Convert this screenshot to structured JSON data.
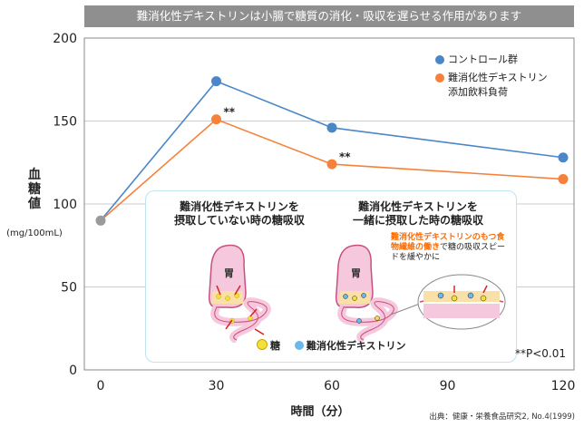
{
  "banner": "難消化性デキストリンは小腸で糖質の消化・吸収を遅らせる作用があります",
  "chart_data": {
    "type": "line",
    "x": [
      0,
      30,
      60,
      120
    ],
    "xticks": [
      "0",
      "30",
      "60",
      "90",
      "120"
    ],
    "yticks": [
      "0",
      "50",
      "100",
      "150",
      "200"
    ],
    "xlim": [
      0,
      120
    ],
    "ylim": [
      0,
      200
    ],
    "xlabel": "時間（分）",
    "ylabel_chars": [
      "血",
      "糖",
      "値"
    ],
    "ylabel_unit": "(mg/100mL)",
    "grid": "horizontal",
    "legend_position": "top-right",
    "series": [
      {
        "name": "コントロール群",
        "color": "#4a86c8",
        "values": [
          90,
          174,
          146,
          128
        ]
      },
      {
        "name": "難消化性デキストリン添加飲料負荷",
        "legend_lines": [
          "難消化性デキストリン",
          "添加飲料負荷"
        ],
        "color": "#f5813a",
        "values": [
          90,
          151,
          124,
          115
        ]
      }
    ],
    "start_point_color": "#9a9a9a",
    "annotations": [
      {
        "text": "**",
        "x": 30,
        "y": 151
      },
      {
        "text": "**",
        "x": 60,
        "y": 124
      }
    ]
  },
  "inset": {
    "left_title": "難消化性デキストリンを\n摂取していない時の糖吸収",
    "right_title": "難消化性デキストリンを\n一緒に摂取した時の糖吸収",
    "stomach_label": "胃",
    "note_highlight": "難消化性デキストリンのもつ食物繊維の働き",
    "note_rest": "で糖の吸収スピードを緩やかに",
    "legend_sugar": "糖",
    "legend_dextrin": "難消化性デキストリン",
    "sugar_color": "#f5e03a",
    "dextrin_color": "#6ab8ec"
  },
  "p_note": "**P<0.01",
  "source": "出典：健康・栄養食品研究2, No.4(1999)"
}
